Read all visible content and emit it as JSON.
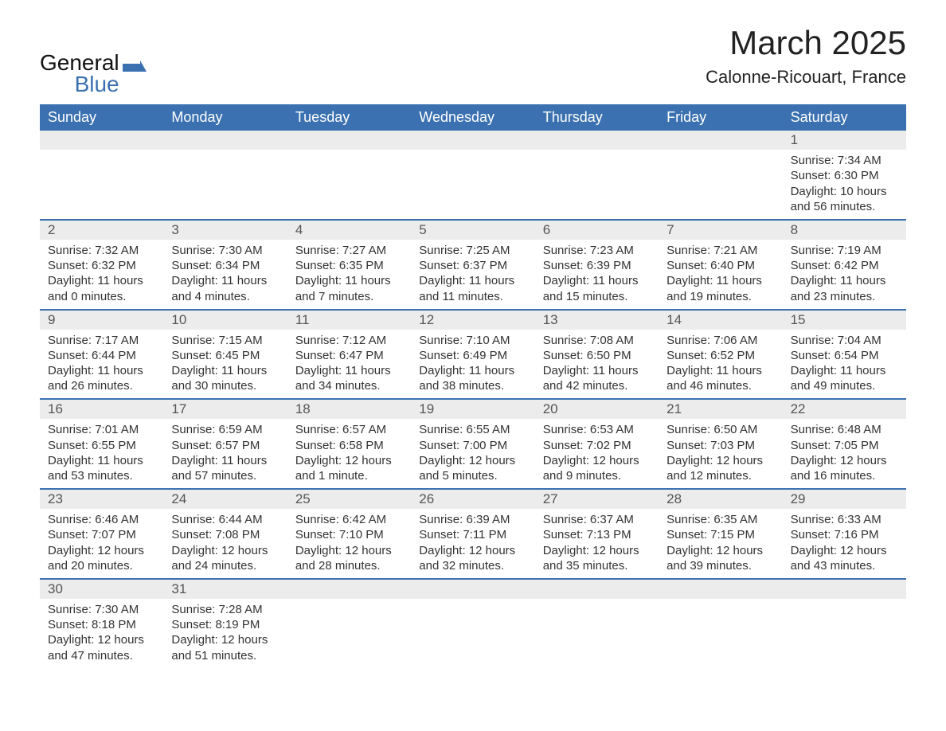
{
  "brand": {
    "name_top": "General",
    "name_bottom": "Blue"
  },
  "title": {
    "month": "March 2025",
    "location": "Calonne-Ricouart, France"
  },
  "colors": {
    "header_bg": "#3b71b0",
    "header_text": "#ffffff",
    "daynum_bg": "#ececec",
    "daynum_text": "#555555",
    "body_text": "#333333",
    "border": "#3b71b0",
    "page_bg": "#ffffff"
  },
  "typography": {
    "title_fontsize": 42,
    "location_fontsize": 22,
    "dayheader_fontsize": 18,
    "daynum_fontsize": 17,
    "body_fontsize": 15
  },
  "day_names": [
    "Sunday",
    "Monday",
    "Tuesday",
    "Wednesday",
    "Thursday",
    "Friday",
    "Saturday"
  ],
  "labels": {
    "sunrise": "Sunrise:",
    "sunset": "Sunset:",
    "daylight": "Daylight:"
  },
  "weeks": [
    {
      "nums": [
        "",
        "",
        "",
        "",
        "",
        "",
        "1"
      ],
      "cells": [
        null,
        null,
        null,
        null,
        null,
        null,
        {
          "sunrise": "7:34 AM",
          "sunset": "6:30 PM",
          "daylight1": "10 hours",
          "daylight2": "and 56 minutes."
        }
      ]
    },
    {
      "nums": [
        "2",
        "3",
        "4",
        "5",
        "6",
        "7",
        "8"
      ],
      "cells": [
        {
          "sunrise": "7:32 AM",
          "sunset": "6:32 PM",
          "daylight1": "11 hours",
          "daylight2": "and 0 minutes."
        },
        {
          "sunrise": "7:30 AM",
          "sunset": "6:34 PM",
          "daylight1": "11 hours",
          "daylight2": "and 4 minutes."
        },
        {
          "sunrise": "7:27 AM",
          "sunset": "6:35 PM",
          "daylight1": "11 hours",
          "daylight2": "and 7 minutes."
        },
        {
          "sunrise": "7:25 AM",
          "sunset": "6:37 PM",
          "daylight1": "11 hours",
          "daylight2": "and 11 minutes."
        },
        {
          "sunrise": "7:23 AM",
          "sunset": "6:39 PM",
          "daylight1": "11 hours",
          "daylight2": "and 15 minutes."
        },
        {
          "sunrise": "7:21 AM",
          "sunset": "6:40 PM",
          "daylight1": "11 hours",
          "daylight2": "and 19 minutes."
        },
        {
          "sunrise": "7:19 AM",
          "sunset": "6:42 PM",
          "daylight1": "11 hours",
          "daylight2": "and 23 minutes."
        }
      ]
    },
    {
      "nums": [
        "9",
        "10",
        "11",
        "12",
        "13",
        "14",
        "15"
      ],
      "cells": [
        {
          "sunrise": "7:17 AM",
          "sunset": "6:44 PM",
          "daylight1": "11 hours",
          "daylight2": "and 26 minutes."
        },
        {
          "sunrise": "7:15 AM",
          "sunset": "6:45 PM",
          "daylight1": "11 hours",
          "daylight2": "and 30 minutes."
        },
        {
          "sunrise": "7:12 AM",
          "sunset": "6:47 PM",
          "daylight1": "11 hours",
          "daylight2": "and 34 minutes."
        },
        {
          "sunrise": "7:10 AM",
          "sunset": "6:49 PM",
          "daylight1": "11 hours",
          "daylight2": "and 38 minutes."
        },
        {
          "sunrise": "7:08 AM",
          "sunset": "6:50 PM",
          "daylight1": "11 hours",
          "daylight2": "and 42 minutes."
        },
        {
          "sunrise": "7:06 AM",
          "sunset": "6:52 PM",
          "daylight1": "11 hours",
          "daylight2": "and 46 minutes."
        },
        {
          "sunrise": "7:04 AM",
          "sunset": "6:54 PM",
          "daylight1": "11 hours",
          "daylight2": "and 49 minutes."
        }
      ]
    },
    {
      "nums": [
        "16",
        "17",
        "18",
        "19",
        "20",
        "21",
        "22"
      ],
      "cells": [
        {
          "sunrise": "7:01 AM",
          "sunset": "6:55 PM",
          "daylight1": "11 hours",
          "daylight2": "and 53 minutes."
        },
        {
          "sunrise": "6:59 AM",
          "sunset": "6:57 PM",
          "daylight1": "11 hours",
          "daylight2": "and 57 minutes."
        },
        {
          "sunrise": "6:57 AM",
          "sunset": "6:58 PM",
          "daylight1": "12 hours",
          "daylight2": "and 1 minute."
        },
        {
          "sunrise": "6:55 AM",
          "sunset": "7:00 PM",
          "daylight1": "12 hours",
          "daylight2": "and 5 minutes."
        },
        {
          "sunrise": "6:53 AM",
          "sunset": "7:02 PM",
          "daylight1": "12 hours",
          "daylight2": "and 9 minutes."
        },
        {
          "sunrise": "6:50 AM",
          "sunset": "7:03 PM",
          "daylight1": "12 hours",
          "daylight2": "and 12 minutes."
        },
        {
          "sunrise": "6:48 AM",
          "sunset": "7:05 PM",
          "daylight1": "12 hours",
          "daylight2": "and 16 minutes."
        }
      ]
    },
    {
      "nums": [
        "23",
        "24",
        "25",
        "26",
        "27",
        "28",
        "29"
      ],
      "cells": [
        {
          "sunrise": "6:46 AM",
          "sunset": "7:07 PM",
          "daylight1": "12 hours",
          "daylight2": "and 20 minutes."
        },
        {
          "sunrise": "6:44 AM",
          "sunset": "7:08 PM",
          "daylight1": "12 hours",
          "daylight2": "and 24 minutes."
        },
        {
          "sunrise": "6:42 AM",
          "sunset": "7:10 PM",
          "daylight1": "12 hours",
          "daylight2": "and 28 minutes."
        },
        {
          "sunrise": "6:39 AM",
          "sunset": "7:11 PM",
          "daylight1": "12 hours",
          "daylight2": "and 32 minutes."
        },
        {
          "sunrise": "6:37 AM",
          "sunset": "7:13 PM",
          "daylight1": "12 hours",
          "daylight2": "and 35 minutes."
        },
        {
          "sunrise": "6:35 AM",
          "sunset": "7:15 PM",
          "daylight1": "12 hours",
          "daylight2": "and 39 minutes."
        },
        {
          "sunrise": "6:33 AM",
          "sunset": "7:16 PM",
          "daylight1": "12 hours",
          "daylight2": "and 43 minutes."
        }
      ]
    },
    {
      "nums": [
        "30",
        "31",
        "",
        "",
        "",
        "",
        ""
      ],
      "cells": [
        {
          "sunrise": "7:30 AM",
          "sunset": "8:18 PM",
          "daylight1": "12 hours",
          "daylight2": "and 47 minutes."
        },
        {
          "sunrise": "7:28 AM",
          "sunset": "8:19 PM",
          "daylight1": "12 hours",
          "daylight2": "and 51 minutes."
        },
        null,
        null,
        null,
        null,
        null
      ]
    }
  ]
}
